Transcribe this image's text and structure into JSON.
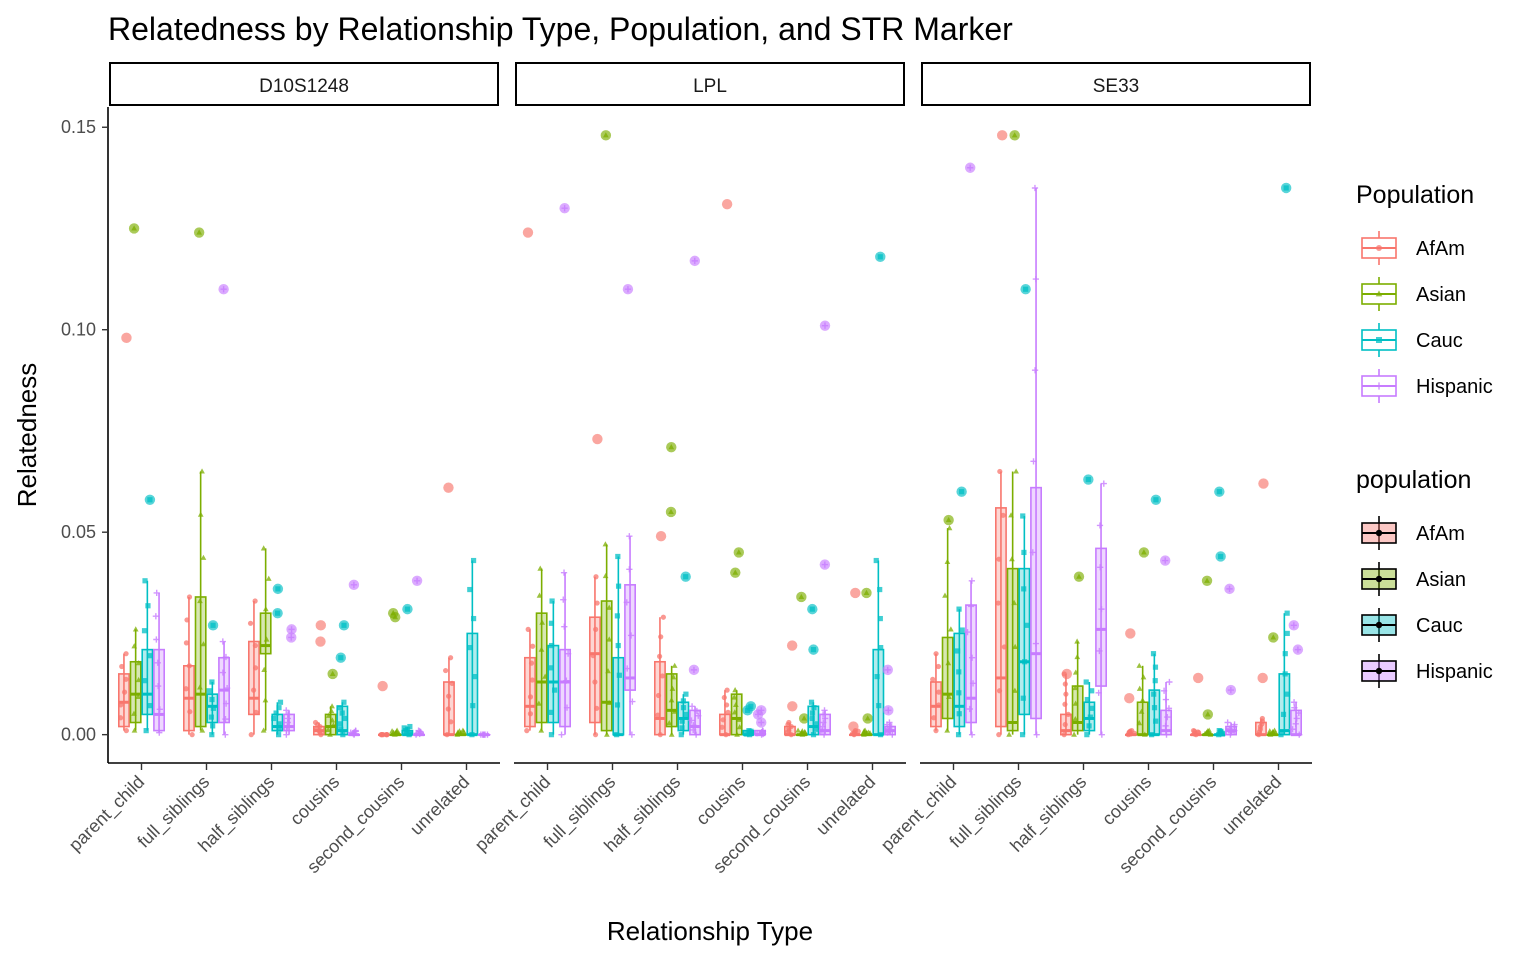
{
  "chart_data": {
    "type": "box",
    "title": "Relatedness by Relationship Type, Population, and STR Marker",
    "xlabel": "Relationship Type",
    "ylabel": "Relatedness",
    "ylim": [
      -0.007,
      0.155
    ],
    "yticks": [
      0.0,
      0.05,
      0.1,
      0.15
    ],
    "ytick_labels": [
      "0.00",
      "0.05",
      "0.10",
      "0.15"
    ],
    "categories": [
      "parent_child",
      "full_siblings",
      "half_siblings",
      "cousins",
      "second_cousins",
      "unrelated"
    ],
    "populations": [
      "AfAm",
      "Asian",
      "Cauc",
      "Hispanic"
    ],
    "colors": {
      "AfAm": "#F8766D",
      "Asian": "#7CAE00",
      "Cauc": "#00BFC4",
      "Hispanic": "#C77CFF"
    },
    "legend_color": {
      "title": "Population",
      "entries": [
        "AfAm",
        "Asian",
        "Cauc",
        "Hispanic"
      ]
    },
    "legend_fill": {
      "title": "population",
      "entries": [
        "AfAm",
        "Asian",
        "Cauc",
        "Hispanic"
      ]
    },
    "facets": [
      {
        "name": "D10S1248",
        "boxes": {
          "parent_child": [
            [
              0.001,
              0.002,
              0.008,
              0.015,
              0.02
            ],
            [
              0.001,
              0.003,
              0.01,
              0.018,
              0.026
            ],
            [
              0.001,
              0.005,
              0.01,
              0.021,
              0.038
            ],
            [
              0.0005,
              0.001,
              0.005,
              0.021,
              0.035
            ]
          ],
          "full_siblings": [
            [
              0.0,
              0.001,
              0.009,
              0.017,
              0.034
            ],
            [
              0.001,
              0.002,
              0.01,
              0.034,
              0.065
            ],
            [
              0.0,
              0.003,
              0.007,
              0.01,
              0.013
            ],
            [
              0.0,
              0.003,
              0.011,
              0.019,
              0.023
            ]
          ],
          "half_siblings": [
            [
              0.0,
              0.005,
              0.009,
              0.023,
              0.033
            ],
            [
              0.001,
              0.02,
              0.022,
              0.03,
              0.046
            ],
            [
              0.0,
              0.001,
              0.002,
              0.005,
              0.008
            ],
            [
              0.0,
              0.001,
              0.002,
              0.005,
              0.006
            ]
          ],
          "cousins": [
            [
              0.0,
              0.0,
              0.001,
              0.002,
              0.003
            ],
            [
              0.0,
              0.0,
              0.002,
              0.005,
              0.007
            ],
            [
              0.0,
              0.0,
              0.001,
              0.007,
              0.008
            ],
            [
              0.0,
              0.0,
              0.0,
              0.0,
              0.001
            ]
          ],
          "second_cousins": [
            [
              0.0,
              0.0,
              0.0,
              0.0,
              0.0
            ],
            [
              0.0,
              0.0,
              0.0,
              0.0,
              0.001
            ],
            [
              0.0,
              0.0,
              0.0,
              0.001,
              0.002
            ],
            [
              0.0,
              0.0,
              0.0,
              0.0,
              0.001
            ]
          ],
          "unrelated": [
            [
              0.0,
              0.0,
              0.0,
              0.013,
              0.019
            ],
            [
              0.0,
              0.0,
              0.0,
              0.0,
              0.001
            ],
            [
              0.0,
              0.0,
              0.0,
              0.025,
              0.043
            ],
            [
              0.0,
              0.0,
              0.0,
              0.0,
              0.0
            ]
          ]
        },
        "outliers": {
          "parent_child": [
            [
              0.098
            ],
            [
              0.125
            ],
            [
              0.058
            ],
            []
          ],
          "full_siblings": [
            [],
            [
              0.124
            ],
            [
              0.027
            ],
            [
              0.11
            ]
          ],
          "half_siblings": [
            [],
            [],
            [
              0.036,
              0.03
            ],
            [
              0.026,
              0.024
            ]
          ],
          "cousins": [
            [
              0.027,
              0.023
            ],
            [
              0.015
            ],
            [
              0.027,
              0.019
            ],
            [
              0.037
            ]
          ],
          "second_cousins": [
            [
              0.012
            ],
            [
              0.03,
              0.029
            ],
            [
              0.031
            ],
            [
              0.038
            ]
          ],
          "unrelated": [
            [
              0.061
            ],
            [],
            [],
            []
          ]
        }
      },
      {
        "name": "LPL",
        "boxes": {
          "parent_child": [
            [
              0.001,
              0.002,
              0.007,
              0.019,
              0.026
            ],
            [
              0.001,
              0.003,
              0.013,
              0.03,
              0.041
            ],
            [
              0.0,
              0.003,
              0.013,
              0.022,
              0.033
            ],
            [
              0.0,
              0.002,
              0.013,
              0.021,
              0.04
            ]
          ],
          "full_siblings": [
            [
              0.0,
              0.003,
              0.02,
              0.029,
              0.039
            ],
            [
              0.0,
              0.001,
              0.008,
              0.033,
              0.047
            ],
            [
              0.0,
              0.0,
              0.0,
              0.019,
              0.044
            ],
            [
              0.0,
              0.011,
              0.014,
              0.037,
              0.049
            ]
          ],
          "half_siblings": [
            [
              0.0,
              0.0,
              0.004,
              0.018,
              0.029
            ],
            [
              0.0,
              0.002,
              0.006,
              0.015,
              0.017
            ],
            [
              0.0,
              0.001,
              0.004,
              0.008,
              0.01
            ],
            [
              0.0,
              0.0,
              0.002,
              0.006,
              0.007
            ]
          ],
          "cousins": [
            [
              0.0,
              0.0,
              0.0,
              0.005,
              0.011
            ],
            [
              0.0,
              0.0,
              0.004,
              0.01,
              0.011
            ],
            [
              0.0,
              0.0,
              0.0,
              0.001,
              0.001
            ],
            [
              0.0,
              0.0,
              0.0,
              0.001,
              0.001
            ]
          ],
          "second_cousins": [
            [
              0.0,
              0.0,
              0.0,
              0.002,
              0.003
            ],
            [
              0.0,
              0.0,
              0.0,
              0.0,
              0.001
            ],
            [
              0.0,
              0.0,
              0.002,
              0.007,
              0.008
            ],
            [
              0.0,
              0.0,
              0.001,
              0.005,
              0.006
            ]
          ],
          "unrelated": [
            [
              0.0,
              0.0,
              0.0,
              0.0,
              0.001
            ],
            [
              0.0,
              0.0,
              0.0,
              0.0,
              0.001
            ],
            [
              0.0,
              0.0,
              0.0,
              0.021,
              0.043
            ],
            [
              0.0,
              0.0,
              0.001,
              0.002,
              0.003
            ]
          ]
        },
        "outliers": {
          "parent_child": [
            [
              0.124
            ],
            [],
            [],
            [
              0.13
            ]
          ],
          "full_siblings": [
            [
              0.073
            ],
            [
              0.148
            ],
            [],
            [
              0.11
            ]
          ],
          "half_siblings": [
            [
              0.049
            ],
            [
              0.071,
              0.055
            ],
            [
              0.039
            ],
            [
              0.117,
              0.016
            ]
          ],
          "cousins": [
            [
              0.131
            ],
            [
              0.045,
              0.04
            ],
            [
              0.007,
              0.006
            ],
            [
              0.006,
              0.005,
              0.003
            ]
          ],
          "second_cousins": [
            [
              0.022,
              0.007
            ],
            [
              0.034,
              0.004
            ],
            [
              0.031,
              0.021
            ],
            [
              0.101,
              0.042
            ]
          ],
          "unrelated": [
            [
              0.035,
              0.002
            ],
            [
              0.035,
              0.004
            ],
            [
              0.118
            ],
            [
              0.016,
              0.006
            ]
          ]
        }
      },
      {
        "name": "SE33",
        "boxes": {
          "parent_child": [
            [
              0.001,
              0.002,
              0.007,
              0.013,
              0.02
            ],
            [
              0.001,
              0.004,
              0.01,
              0.024,
              0.051
            ],
            [
              0.0,
              0.002,
              0.007,
              0.025,
              0.031
            ],
            [
              0.0,
              0.003,
              0.009,
              0.032,
              0.038
            ]
          ],
          "full_siblings": [
            [
              0.0,
              0.002,
              0.014,
              0.056,
              0.065
            ],
            [
              0.0,
              0.001,
              0.003,
              0.041,
              0.065
            ],
            [
              0.0,
              0.005,
              0.018,
              0.041,
              0.054
            ],
            [
              0.0,
              0.004,
              0.02,
              0.061,
              0.135
            ]
          ],
          "half_siblings": [
            [
              0.0,
              0.0,
              0.001,
              0.005,
              0.015
            ],
            [
              0.0,
              0.001,
              0.003,
              0.012,
              0.023
            ],
            [
              0.0,
              0.001,
              0.004,
              0.008,
              0.013
            ],
            [
              0.0,
              0.012,
              0.026,
              0.046,
              0.062
            ]
          ],
          "cousins": [
            [
              0.0,
              0.0,
              0.0,
              0.0,
              0.001
            ],
            [
              0.0,
              0.0,
              0.0,
              0.008,
              0.017
            ],
            [
              0.0,
              0.0,
              0.0,
              0.011,
              0.02
            ],
            [
              0.0,
              0.0,
              0.001,
              0.006,
              0.013
            ]
          ],
          "second_cousins": [
            [
              0.0,
              0.0,
              0.0,
              0.0,
              0.001
            ],
            [
              0.0,
              0.0,
              0.0,
              0.0,
              0.001
            ],
            [
              0.0,
              0.0,
              0.0,
              0.0,
              0.001
            ],
            [
              0.0,
              0.0,
              0.001,
              0.002,
              0.003
            ]
          ],
          "unrelated": [
            [
              0.0,
              0.0,
              0.0,
              0.003,
              0.004
            ],
            [
              0.0,
              0.0,
              0.0,
              0.0,
              0.001
            ],
            [
              0.0,
              0.0,
              0.001,
              0.015,
              0.03
            ],
            [
              0.0,
              0.0,
              0.0,
              0.006,
              0.008
            ]
          ]
        },
        "outliers": {
          "parent_child": [
            [],
            [
              0.053
            ],
            [
              0.06
            ],
            [
              0.14
            ]
          ],
          "full_siblings": [
            [
              0.148
            ],
            [
              0.148
            ],
            [
              0.11
            ],
            []
          ],
          "half_siblings": [
            [
              0.015
            ],
            [
              0.039
            ],
            [
              0.063
            ],
            []
          ],
          "cousins": [
            [
              0.025,
              0.009
            ],
            [
              0.045
            ],
            [
              0.058
            ],
            [
              0.043
            ]
          ],
          "second_cousins": [
            [
              0.014
            ],
            [
              0.038,
              0.005
            ],
            [
              0.06,
              0.044
            ],
            [
              0.036,
              0.011
            ]
          ],
          "unrelated": [
            [
              0.062,
              0.014
            ],
            [
              0.024
            ],
            [
              0.135
            ],
            [
              0.027,
              0.021
            ]
          ]
        }
      }
    ]
  }
}
